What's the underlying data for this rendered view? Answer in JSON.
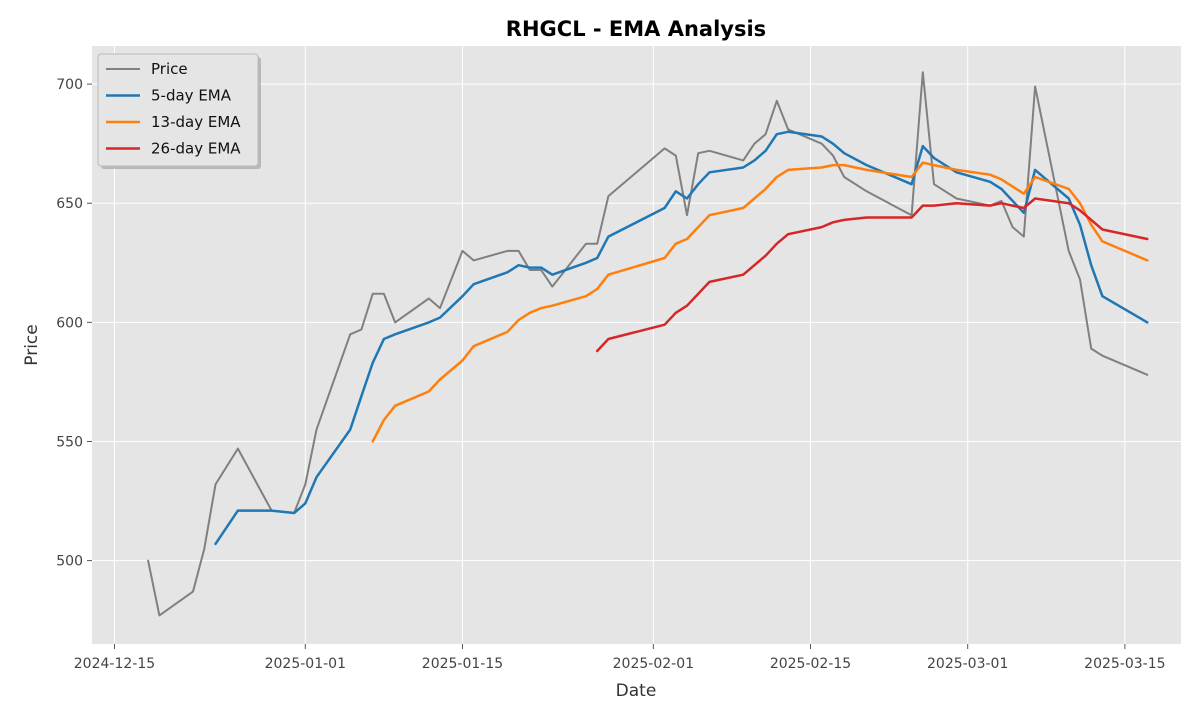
{
  "chart_data": {
    "type": "line",
    "title": "RHGCL - EMA Analysis",
    "xlabel": "Date",
    "ylabel": "Price",
    "x_ticks": [
      "2024-12-15",
      "2025-01-01",
      "2025-01-15",
      "2025-02-01",
      "2025-02-15",
      "2025-03-01",
      "2025-03-15"
    ],
    "y_ticks": [
      500,
      550,
      600,
      650,
      700
    ],
    "xlim": [
      "2024-12-13",
      "2025-03-20"
    ],
    "ylim": [
      465,
      716
    ],
    "grid": true,
    "legend_position": "top-left",
    "series": [
      {
        "name": "Price",
        "color": "#808080",
        "points": [
          [
            "2024-12-18",
            500
          ],
          [
            "2024-12-19",
            477
          ],
          [
            "2024-12-22",
            487
          ],
          [
            "2024-12-23",
            505
          ],
          [
            "2024-12-24",
            532
          ],
          [
            "2024-12-26",
            547
          ],
          [
            "2024-12-29",
            521
          ],
          [
            "2024-12-31",
            520
          ],
          [
            "2025-01-01",
            532
          ],
          [
            "2025-01-02",
            555
          ],
          [
            "2025-01-05",
            595
          ],
          [
            "2025-01-06",
            597
          ],
          [
            "2025-01-07",
            612
          ],
          [
            "2025-01-08",
            612
          ],
          [
            "2025-01-09",
            600
          ],
          [
            "2025-01-12",
            610
          ],
          [
            "2025-01-13",
            606
          ],
          [
            "2025-01-15",
            630
          ],
          [
            "2025-01-16",
            626
          ],
          [
            "2025-01-19",
            630
          ],
          [
            "2025-01-20",
            630
          ],
          [
            "2025-01-21",
            622
          ],
          [
            "2025-01-22",
            622
          ],
          [
            "2025-01-23",
            615
          ],
          [
            "2025-01-26",
            633
          ],
          [
            "2025-01-27",
            633
          ],
          [
            "2025-01-28",
            653
          ],
          [
            "2025-02-02",
            673
          ],
          [
            "2025-02-03",
            670
          ],
          [
            "2025-02-04",
            645
          ],
          [
            "2025-02-05",
            671
          ],
          [
            "2025-02-06",
            672
          ],
          [
            "2025-02-09",
            668
          ],
          [
            "2025-02-10",
            675
          ],
          [
            "2025-02-11",
            679
          ],
          [
            "2025-02-12",
            693
          ],
          [
            "2025-02-13",
            681
          ],
          [
            "2025-02-16",
            675
          ],
          [
            "2025-02-17",
            670
          ],
          [
            "2025-02-18",
            661
          ],
          [
            "2025-02-20",
            655
          ],
          [
            "2025-02-24",
            645
          ],
          [
            "2025-02-25",
            705
          ],
          [
            "2025-02-26",
            658
          ],
          [
            "2025-02-28",
            652
          ],
          [
            "2025-03-03",
            649
          ],
          [
            "2025-03-04",
            651
          ],
          [
            "2025-03-05",
            640
          ],
          [
            "2025-03-06",
            636
          ],
          [
            "2025-03-07",
            699
          ],
          [
            "2025-03-10",
            630
          ],
          [
            "2025-03-11",
            618
          ],
          [
            "2025-03-12",
            589
          ],
          [
            "2025-03-13",
            586
          ],
          [
            "2025-03-17",
            578
          ]
        ]
      },
      {
        "name": "5-day EMA",
        "color": "#1f77b4",
        "points": [
          [
            "2024-12-24",
            507
          ],
          [
            "2024-12-26",
            521
          ],
          [
            "2024-12-29",
            521
          ],
          [
            "2024-12-31",
            520
          ],
          [
            "2025-01-01",
            524
          ],
          [
            "2025-01-02",
            535
          ],
          [
            "2025-01-05",
            555
          ],
          [
            "2025-01-06",
            569
          ],
          [
            "2025-01-07",
            583
          ],
          [
            "2025-01-08",
            593
          ],
          [
            "2025-01-09",
            595
          ],
          [
            "2025-01-12",
            600
          ],
          [
            "2025-01-13",
            602
          ],
          [
            "2025-01-15",
            611
          ],
          [
            "2025-01-16",
            616
          ],
          [
            "2025-01-19",
            621
          ],
          [
            "2025-01-20",
            624
          ],
          [
            "2025-01-21",
            623
          ],
          [
            "2025-01-22",
            623
          ],
          [
            "2025-01-23",
            620
          ],
          [
            "2025-01-26",
            625
          ],
          [
            "2025-01-27",
            627
          ],
          [
            "2025-01-28",
            636
          ],
          [
            "2025-02-02",
            648
          ],
          [
            "2025-02-03",
            655
          ],
          [
            "2025-02-04",
            652
          ],
          [
            "2025-02-05",
            658
          ],
          [
            "2025-02-06",
            663
          ],
          [
            "2025-02-09",
            665
          ],
          [
            "2025-02-10",
            668
          ],
          [
            "2025-02-11",
            672
          ],
          [
            "2025-02-12",
            679
          ],
          [
            "2025-02-13",
            680
          ],
          [
            "2025-02-16",
            678
          ],
          [
            "2025-02-17",
            675
          ],
          [
            "2025-02-18",
            671
          ],
          [
            "2025-02-20",
            666
          ],
          [
            "2025-02-24",
            658
          ],
          [
            "2025-02-25",
            674
          ],
          [
            "2025-02-26",
            669
          ],
          [
            "2025-02-28",
            663
          ],
          [
            "2025-03-03",
            659
          ],
          [
            "2025-03-04",
            656
          ],
          [
            "2025-03-05",
            651
          ],
          [
            "2025-03-06",
            646
          ],
          [
            "2025-03-07",
            664
          ],
          [
            "2025-03-10",
            652
          ],
          [
            "2025-03-11",
            641
          ],
          [
            "2025-03-12",
            624
          ],
          [
            "2025-03-13",
            611
          ],
          [
            "2025-03-17",
            600
          ]
        ]
      },
      {
        "name": "13-day EMA",
        "color": "#ff7f0e",
        "points": [
          [
            "2025-01-07",
            550
          ],
          [
            "2025-01-08",
            559
          ],
          [
            "2025-01-09",
            565
          ],
          [
            "2025-01-12",
            571
          ],
          [
            "2025-01-13",
            576
          ],
          [
            "2025-01-15",
            584
          ],
          [
            "2025-01-16",
            590
          ],
          [
            "2025-01-19",
            596
          ],
          [
            "2025-01-20",
            601
          ],
          [
            "2025-01-21",
            604
          ],
          [
            "2025-01-22",
            606
          ],
          [
            "2025-01-23",
            607
          ],
          [
            "2025-01-26",
            611
          ],
          [
            "2025-01-27",
            614
          ],
          [
            "2025-01-28",
            620
          ],
          [
            "2025-02-02",
            627
          ],
          [
            "2025-02-03",
            633
          ],
          [
            "2025-02-04",
            635
          ],
          [
            "2025-02-05",
            640
          ],
          [
            "2025-02-06",
            645
          ],
          [
            "2025-02-09",
            648
          ],
          [
            "2025-02-10",
            652
          ],
          [
            "2025-02-11",
            656
          ],
          [
            "2025-02-12",
            661
          ],
          [
            "2025-02-13",
            664
          ],
          [
            "2025-02-16",
            665
          ],
          [
            "2025-02-17",
            666
          ],
          [
            "2025-02-18",
            666
          ],
          [
            "2025-02-20",
            664
          ],
          [
            "2025-02-24",
            661
          ],
          [
            "2025-02-25",
            667
          ],
          [
            "2025-02-26",
            666
          ],
          [
            "2025-02-28",
            664
          ],
          [
            "2025-03-03",
            662
          ],
          [
            "2025-03-04",
            660
          ],
          [
            "2025-03-05",
            657
          ],
          [
            "2025-03-06",
            654
          ],
          [
            "2025-03-07",
            661
          ],
          [
            "2025-03-10",
            656
          ],
          [
            "2025-03-11",
            650
          ],
          [
            "2025-03-12",
            641
          ],
          [
            "2025-03-13",
            634
          ],
          [
            "2025-03-17",
            626
          ]
        ]
      },
      {
        "name": "26-day EMA",
        "color": "#d62728",
        "points": [
          [
            "2025-01-27",
            588
          ],
          [
            "2025-01-28",
            593
          ],
          [
            "2025-02-02",
            599
          ],
          [
            "2025-02-03",
            604
          ],
          [
            "2025-02-04",
            607
          ],
          [
            "2025-02-05",
            612
          ],
          [
            "2025-02-06",
            617
          ],
          [
            "2025-02-09",
            620
          ],
          [
            "2025-02-10",
            624
          ],
          [
            "2025-02-11",
            628
          ],
          [
            "2025-02-12",
            633
          ],
          [
            "2025-02-13",
            637
          ],
          [
            "2025-02-16",
            640
          ],
          [
            "2025-02-17",
            642
          ],
          [
            "2025-02-18",
            643
          ],
          [
            "2025-02-20",
            644
          ],
          [
            "2025-02-24",
            644
          ],
          [
            "2025-02-25",
            649
          ],
          [
            "2025-02-26",
            649
          ],
          [
            "2025-02-28",
            650
          ],
          [
            "2025-03-03",
            649
          ],
          [
            "2025-03-04",
            650
          ],
          [
            "2025-03-05",
            649
          ],
          [
            "2025-03-06",
            648
          ],
          [
            "2025-03-07",
            652
          ],
          [
            "2025-03-10",
            650
          ],
          [
            "2025-03-11",
            647
          ],
          [
            "2025-03-12",
            643
          ],
          [
            "2025-03-13",
            639
          ],
          [
            "2025-03-17",
            635
          ]
        ]
      }
    ]
  }
}
